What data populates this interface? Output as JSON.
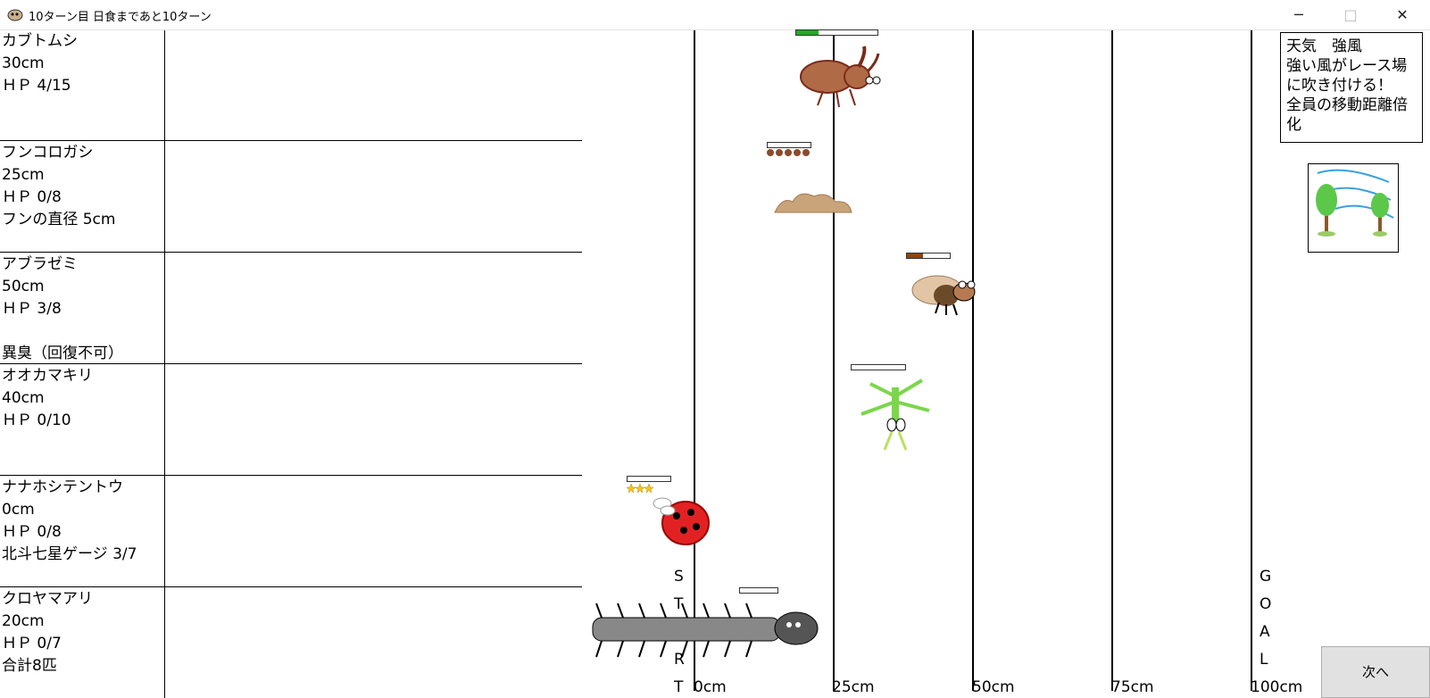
{
  "window": {
    "title": "10ターン目 日食まであと10ターン",
    "min_symbol": "─",
    "max_symbol": "□",
    "close_symbol": "✕"
  },
  "lanes": [
    {
      "name": "カブトムシ",
      "distance": "30cm",
      "hp": "ＨＰ 4/15",
      "extra": "",
      "hp_fraction": 0.27
    },
    {
      "name": "フンコロガシ",
      "distance": "25cm",
      "hp": "ＨＰ 0/8",
      "extra": "フンの直径 5cm",
      "hp_fraction": 0
    },
    {
      "name": "アブラゼミ",
      "distance": "50cm",
      "hp": "ＨＰ 3/8",
      "extra": "",
      "extra2": "異臭（回復不可）",
      "hp_fraction": 0.375
    },
    {
      "name": "オオカマキリ",
      "distance": "40cm",
      "hp": "ＨＰ 0/10",
      "extra": "",
      "hp_fraction": 0
    },
    {
      "name": "ナナホシテントウ",
      "distance": "0cm",
      "hp": "ＨＰ 0/8",
      "extra": "北斗七星ゲージ 3/7",
      "hp_fraction": 0
    },
    {
      "name": "クロヤマアリ",
      "distance": "20cm",
      "hp": "ＨＰ 0/7",
      "extra": "合計8匹",
      "hp_fraction": 0
    }
  ],
  "track": {
    "ticks": [
      "0cm",
      "25cm",
      "50cm",
      "75cm",
      "100cm"
    ],
    "start_letters": [
      "S",
      "T",
      "A",
      "R",
      "T"
    ],
    "goal_letters": [
      "G",
      "O",
      "A",
      "L"
    ]
  },
  "weather": {
    "title": "天気　強風",
    "line1": "強い風がレース場に吹き付ける！",
    "line2": "全員の移動距離倍化"
  },
  "next_button": "次へ",
  "colors": {
    "hp_green": "#22aa22",
    "hp_brown": "#8b4513"
  }
}
